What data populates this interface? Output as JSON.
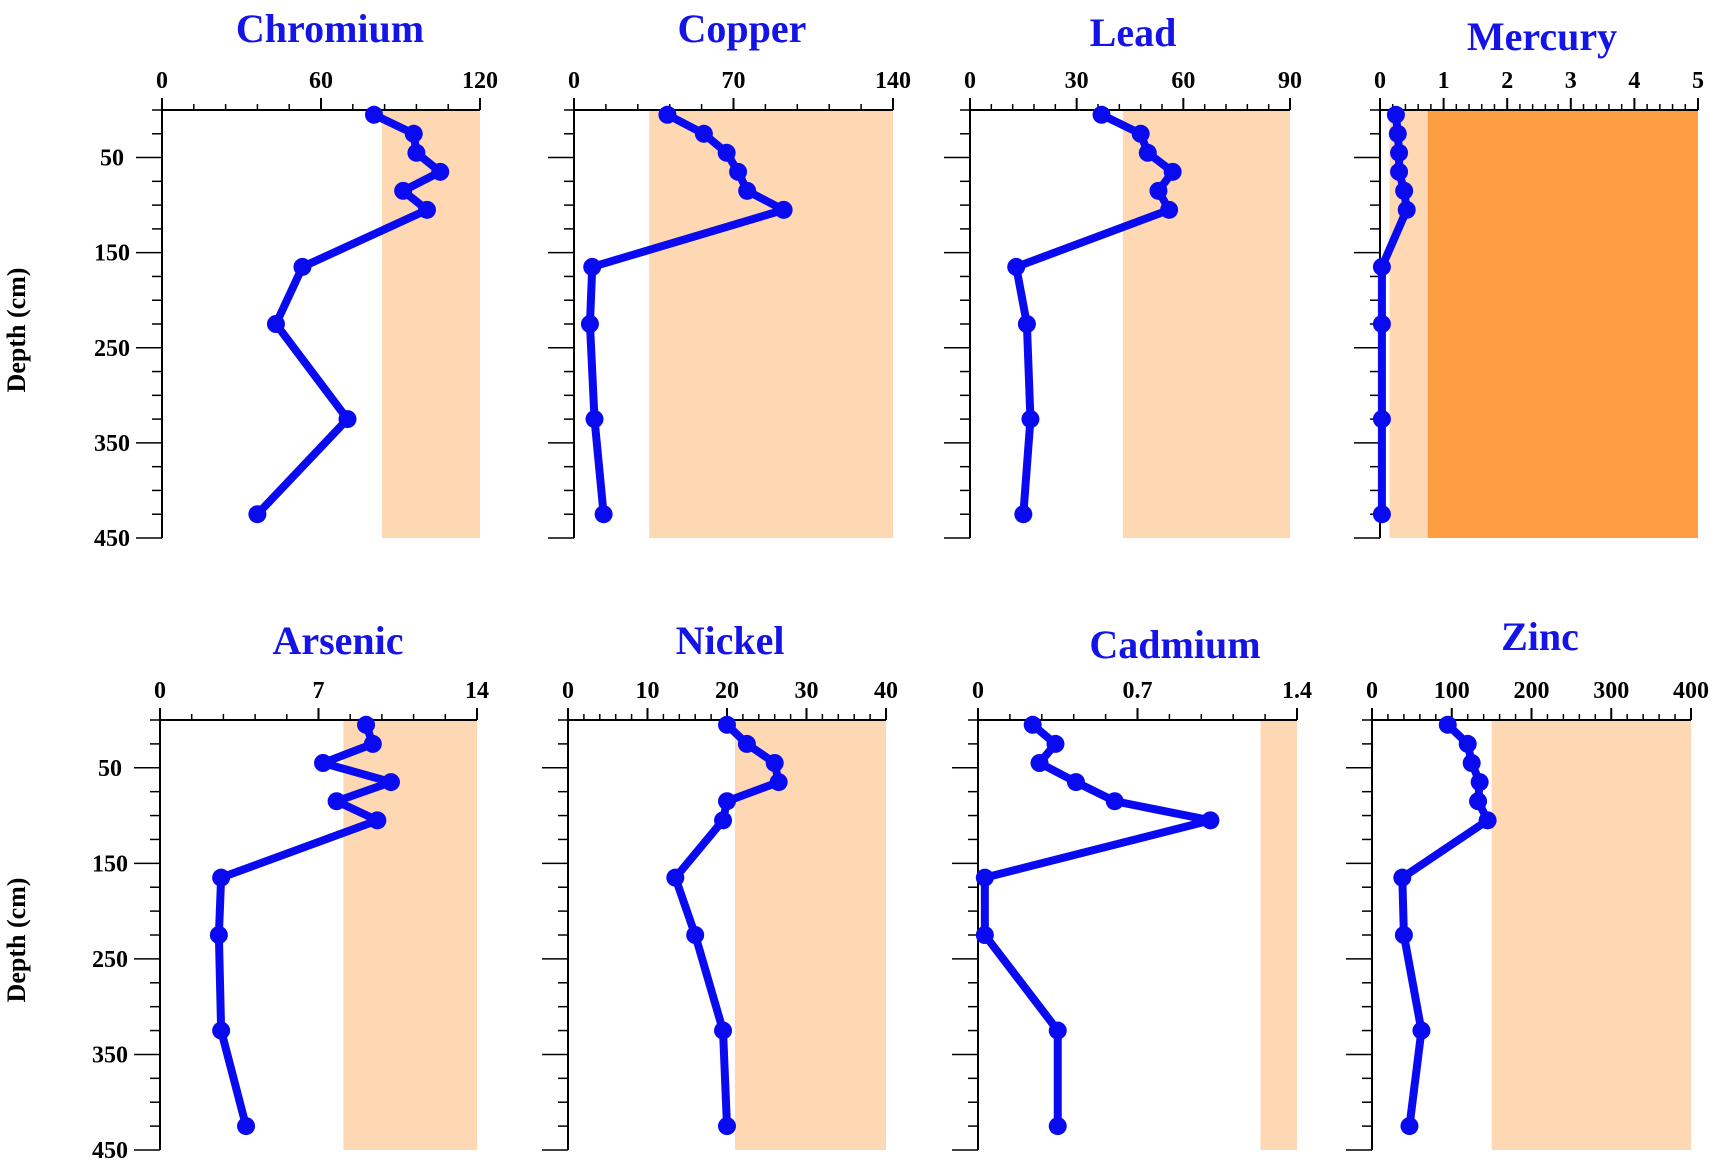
{
  "figure": {
    "ylabel": "Depth (cm)",
    "colors": {
      "series": "#0a0af0",
      "title": "#1414e6",
      "band_light": "#fdd8b2",
      "band_dark": "#fd9e43",
      "axis": "#000000"
    }
  },
  "chart_data": [
    {
      "type": "line",
      "title": "Chromium",
      "xlim": [
        0,
        120
      ],
      "xticks": [
        "0",
        "60",
        "120"
      ],
      "ylim": [
        0,
        450
      ],
      "yticks": [
        "50",
        "150",
        "250",
        "350",
        "450"
      ],
      "shaded_bands": [
        {
          "x": [
            83,
            120
          ],
          "y": [
            0,
            450
          ],
          "shade": "light"
        }
      ],
      "depth": [
        5,
        25,
        45,
        65,
        85,
        105,
        165,
        225,
        325,
        425
      ],
      "values": [
        80,
        95,
        96,
        105,
        91,
        100,
        53,
        43,
        70,
        36
      ]
    },
    {
      "type": "line",
      "title": "Copper",
      "xlim": [
        0,
        140
      ],
      "xticks": [
        "0",
        "70",
        "140"
      ],
      "ylim": [
        0,
        450
      ],
      "yticks": [],
      "shaded_bands": [
        {
          "x": [
            33,
            140
          ],
          "y": [
            0,
            450
          ],
          "shade": "light"
        }
      ],
      "depth": [
        5,
        25,
        45,
        65,
        85,
        105,
        165,
        225,
        325,
        425
      ],
      "values": [
        41,
        57,
        67,
        72,
        76,
        92,
        8,
        7,
        9,
        13
      ]
    },
    {
      "type": "line",
      "title": "Lead",
      "xlim": [
        0,
        90
      ],
      "xticks": [
        "0",
        "30",
        "60",
        "90"
      ],
      "ylim": [
        0,
        450
      ],
      "yticks": [],
      "shaded_bands": [
        {
          "x": [
            43,
            90
          ],
          "y": [
            0,
            450
          ],
          "shade": "light"
        }
      ],
      "depth": [
        5,
        25,
        45,
        65,
        85,
        105,
        165,
        225,
        325,
        425
      ],
      "values": [
        37,
        48,
        50,
        57,
        53,
        56,
        13,
        16,
        17,
        15
      ]
    },
    {
      "type": "line",
      "title": "Mercury",
      "xlim": [
        0,
        5
      ],
      "xticks": [
        "0",
        "1",
        "2",
        "3",
        "4",
        "5"
      ],
      "ylim": [
        0,
        450
      ],
      "yticks": [],
      "shaded_bands": [
        {
          "x": [
            0.15,
            0.75
          ],
          "y": [
            0,
            450
          ],
          "shade": "light"
        },
        {
          "x": [
            0.75,
            5
          ],
          "y": [
            0,
            450
          ],
          "shade": "dark"
        }
      ],
      "depth": [
        5,
        25,
        45,
        65,
        85,
        105,
        165,
        225,
        325,
        425
      ],
      "values": [
        0.25,
        0.28,
        0.3,
        0.3,
        0.38,
        0.42,
        0.03,
        0.03,
        0.03,
        0.03
      ]
    },
    {
      "type": "line",
      "title": "Arsenic",
      "xlim": [
        0,
        14
      ],
      "xticks": [
        "0",
        "7",
        "14"
      ],
      "ylim": [
        0,
        450
      ],
      "yticks": [
        "50",
        "150",
        "250",
        "350",
        "450"
      ],
      "shaded_bands": [
        {
          "x": [
            8.1,
            14
          ],
          "y": [
            0,
            450
          ],
          "shade": "light"
        }
      ],
      "depth": [
        5,
        25,
        45,
        65,
        85,
        105,
        165,
        225,
        325,
        425
      ],
      "values": [
        9.1,
        9.4,
        7.2,
        10.2,
        7.8,
        9.6,
        2.7,
        2.6,
        2.7,
        3.8
      ]
    },
    {
      "type": "line",
      "title": "Nickel",
      "xlim": [
        0,
        40
      ],
      "xticks": [
        "0",
        "10",
        "20",
        "30",
        "40"
      ],
      "ylim": [
        0,
        450
      ],
      "yticks": [],
      "shaded_bands": [
        {
          "x": [
            21,
            40
          ],
          "y": [
            0,
            450
          ],
          "shade": "light"
        }
      ],
      "depth": [
        5,
        25,
        45,
        65,
        85,
        105,
        165,
        225,
        325,
        425
      ],
      "values": [
        20,
        22.5,
        26,
        26.5,
        20,
        19.5,
        13.5,
        16,
        19.5,
        20
      ]
    },
    {
      "type": "line",
      "title": "Cadmium",
      "xlim": [
        0,
        1.4
      ],
      "xticks": [
        "0",
        "0.7",
        "1.4"
      ],
      "ylim": [
        0,
        450
      ],
      "yticks": [],
      "shaded_bands": [
        {
          "x": [
            1.24,
            1.4
          ],
          "y": [
            0,
            450
          ],
          "shade": "light"
        }
      ],
      "depth": [
        5,
        25,
        45,
        65,
        85,
        105,
        165,
        225,
        325,
        425
      ],
      "values": [
        0.24,
        0.34,
        0.27,
        0.43,
        0.6,
        1.02,
        0.03,
        0.03,
        0.35,
        0.35
      ]
    },
    {
      "type": "line",
      "title": "Zinc",
      "xlim": [
        0,
        400
      ],
      "xticks": [
        "0",
        "100",
        "200",
        "300",
        "400"
      ],
      "ylim": [
        0,
        450
      ],
      "yticks": [],
      "shaded_bands": [
        {
          "x": [
            150,
            400
          ],
          "y": [
            0,
            450
          ],
          "shade": "light"
        }
      ],
      "depth": [
        5,
        25,
        45,
        65,
        85,
        105,
        165,
        225,
        325,
        425
      ],
      "values": [
        95,
        120,
        125,
        135,
        133,
        145,
        38,
        40,
        62,
        47
      ]
    }
  ]
}
